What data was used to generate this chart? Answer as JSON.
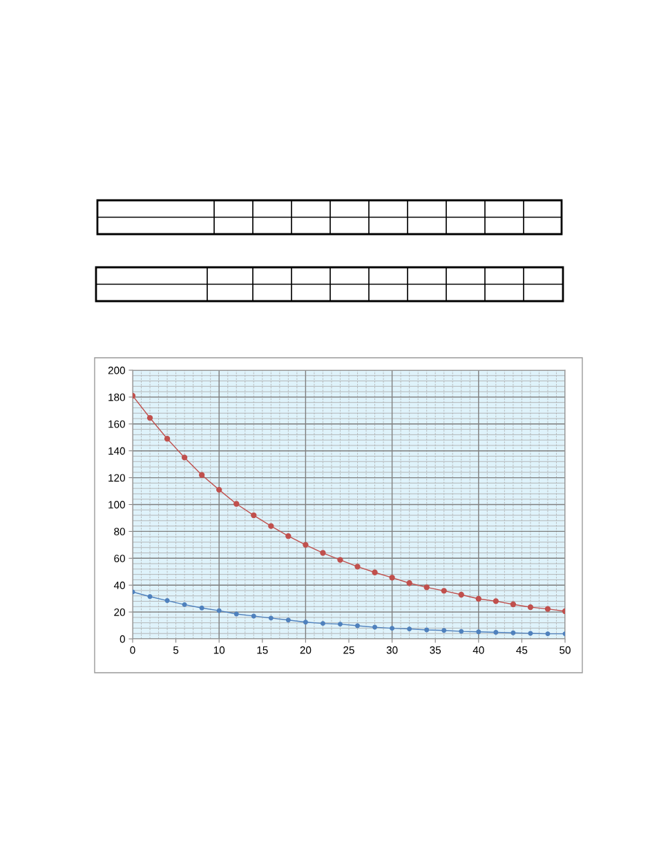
{
  "chart_data": {
    "type": "line",
    "x": [
      0,
      2,
      4,
      6,
      8,
      10,
      12,
      14,
      16,
      18,
      20,
      22,
      24,
      26,
      28,
      30,
      32,
      34,
      36,
      38,
      40,
      42,
      44,
      46,
      48,
      50
    ],
    "series": [
      {
        "color": "#c0504d",
        "values": [
          181,
          164.5,
          149,
          135,
          122,
          111,
          100.5,
          92,
          84,
          76.5,
          70,
          64,
          58.8,
          53.8,
          49.5,
          45.6,
          41.5,
          38.4,
          35.8,
          32.9,
          29.8,
          28.1,
          25.7,
          23.6,
          22.3,
          20.6
        ]
      },
      {
        "color": "#4f81bd",
        "values": [
          35,
          31.5,
          28.5,
          25.5,
          23,
          21,
          18.5,
          17,
          15.5,
          14,
          12.5,
          11.5,
          11,
          9.8,
          8.7,
          7.9,
          7.4,
          6.7,
          6.3,
          5.6,
          5.3,
          4.9,
          4.5,
          4.1,
          3.8,
          3.8
        ]
      }
    ],
    "xlim": [
      0,
      50
    ],
    "xticks": [
      0,
      5,
      10,
      15,
      20,
      25,
      30,
      35,
      40,
      45,
      50
    ],
    "ylim": [
      0,
      200
    ],
    "yticks": [
      0,
      20,
      40,
      60,
      80,
      100,
      120,
      140,
      160,
      180,
      200
    ],
    "grid": true,
    "marker": "circle",
    "line_style": "solid"
  }
}
